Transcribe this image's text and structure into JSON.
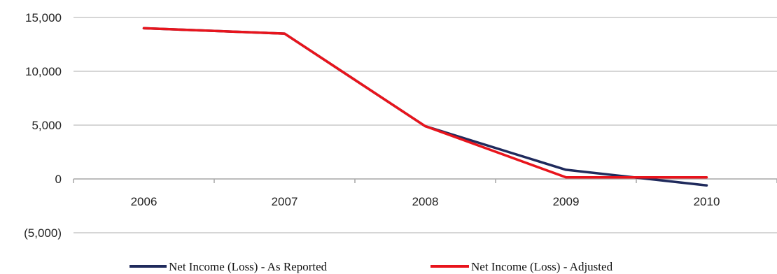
{
  "chart_data": {
    "type": "line",
    "title": "",
    "xlabel": "",
    "ylabel": "",
    "x": [
      "2006",
      "2007",
      "2008",
      "2009",
      "2010"
    ],
    "ylim": [
      -5000,
      15000
    ],
    "yticks": [
      15000,
      10000,
      5000,
      0,
      -5000
    ],
    "ytick_labels": [
      "15,000",
      "10,000",
      "5,000",
      "0",
      "(5,000)"
    ],
    "grid": "horizontal",
    "legend_position": "bottom",
    "series": [
      {
        "name": "Net Income (Loss) - As Reported",
        "color": "#1f2a5c",
        "values": [
          14000,
          13500,
          4900,
          850,
          -600
        ]
      },
      {
        "name": "Net Income (Loss) - Adjusted",
        "color": "#e8141c",
        "values": [
          14000,
          13500,
          4900,
          150,
          150
        ]
      }
    ]
  }
}
